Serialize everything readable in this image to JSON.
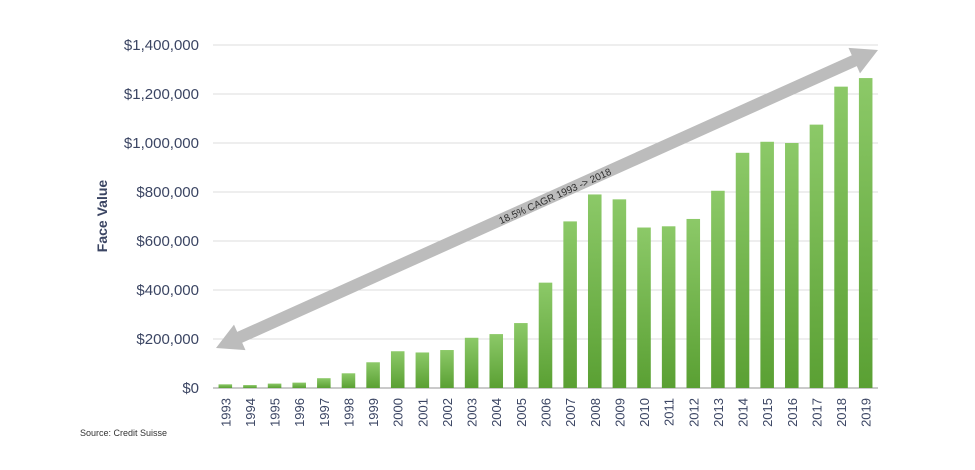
{
  "chart_data": {
    "type": "bar",
    "ylabel": "Face Value",
    "xlabel": "",
    "ylim": [
      0,
      1400000
    ],
    "yticks": [
      0,
      200000,
      400000,
      600000,
      800000,
      1000000,
      1200000,
      1400000
    ],
    "ytick_labels": [
      "$0",
      "$200,000",
      "$400,000",
      "$600,000",
      "$800,000",
      "$1,000,000",
      "$1,200,000",
      "$1,400,000"
    ],
    "grid": true,
    "categories": [
      "1993",
      "1994",
      "1995",
      "1996",
      "1997",
      "1998",
      "1999",
      "2000",
      "2001",
      "2002",
      "2003",
      "2004",
      "2005",
      "2006",
      "2007",
      "2008",
      "2009",
      "2010",
      "2011",
      "2012",
      "2013",
      "2014",
      "2015",
      "2016",
      "2017",
      "2018",
      "2019"
    ],
    "values": [
      15000,
      12000,
      18000,
      22000,
      40000,
      60000,
      105000,
      150000,
      145000,
      155000,
      205000,
      220000,
      265000,
      430000,
      680000,
      790000,
      770000,
      655000,
      660000,
      690000,
      805000,
      960000,
      1005000,
      1000000,
      1075000,
      1230000,
      1265000
    ],
    "annotation": {
      "text": "18.5% CAGR 1993 -> 2018",
      "arrow_from_year": "1993",
      "arrow_to_year": "2019"
    },
    "bar_color": "#6db33f",
    "bar_color_light": "#8cc968"
  },
  "source": "Source: Credit Suisse"
}
